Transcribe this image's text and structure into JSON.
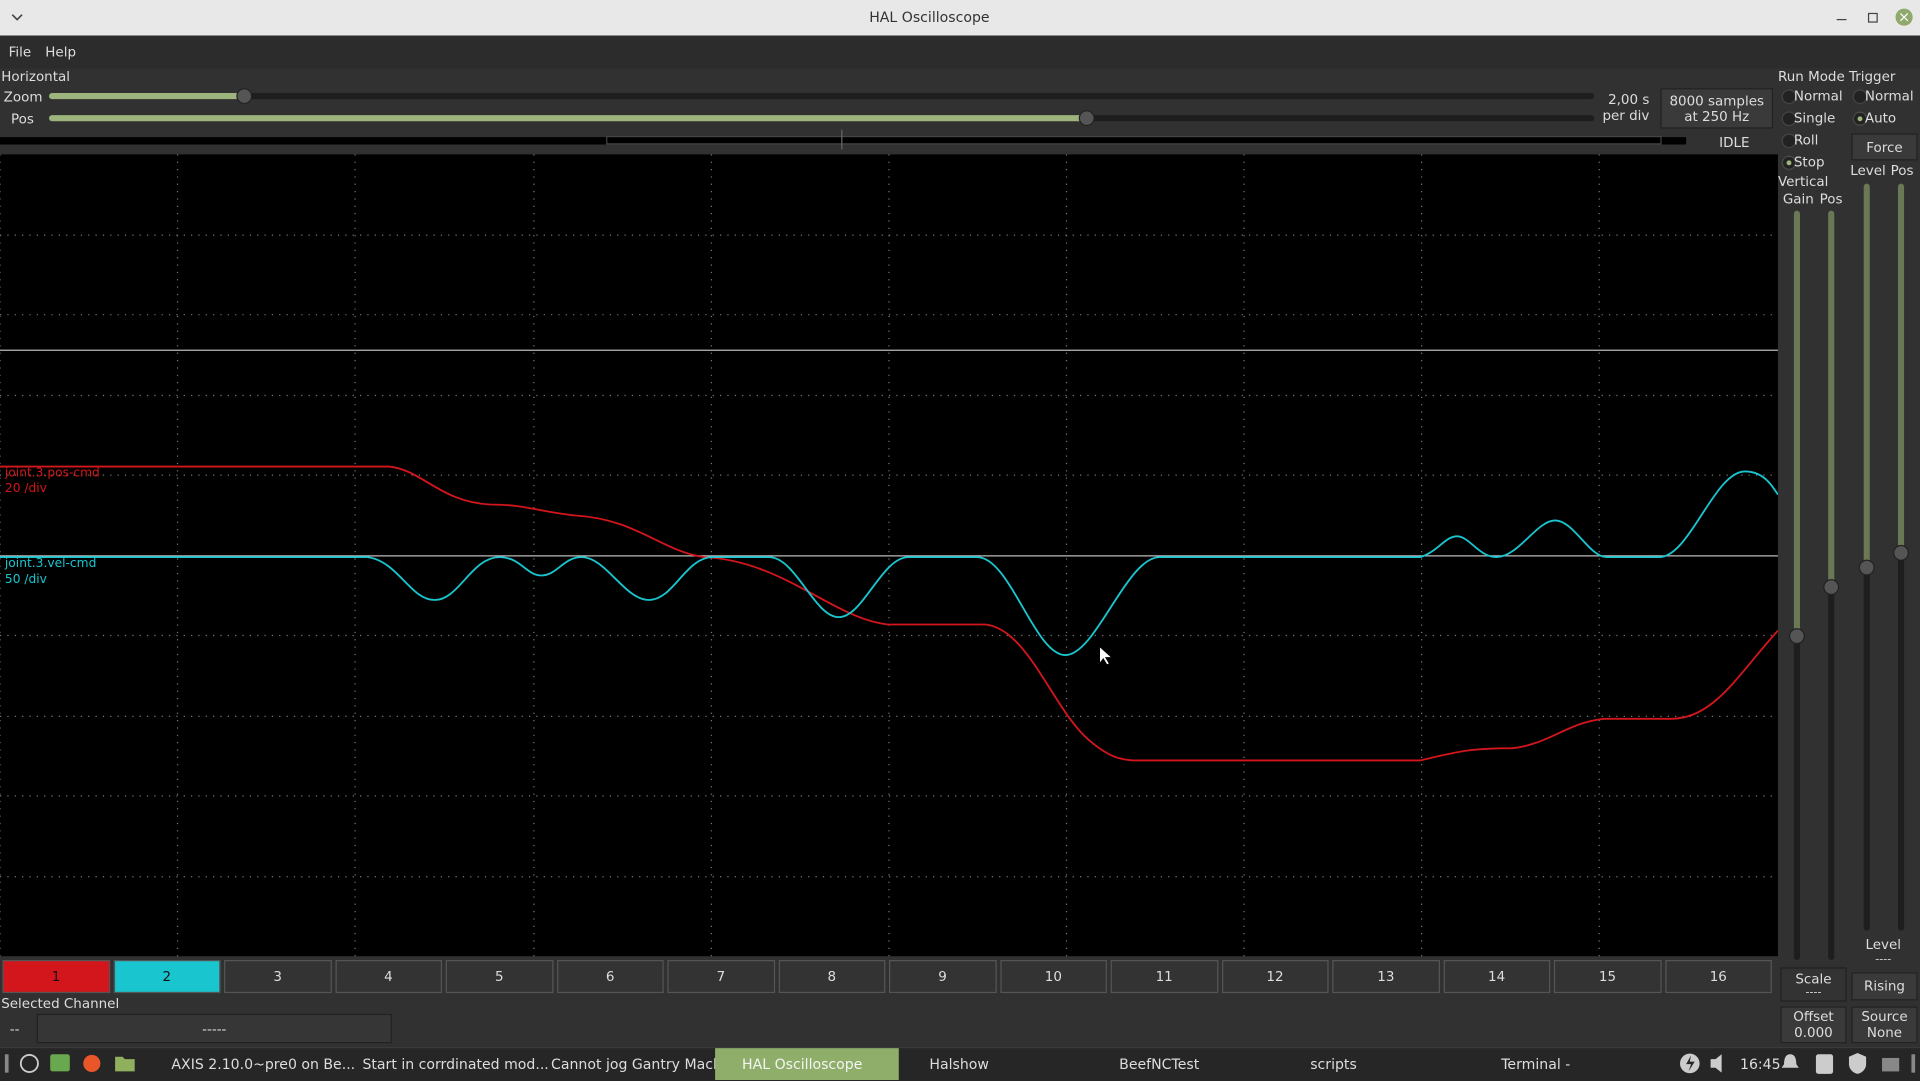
{
  "window": {
    "title": "HAL Oscilloscope"
  },
  "menu": [
    "File",
    "Help"
  ],
  "horizontal": {
    "label": "Horizontal",
    "zoom": "Zoom",
    "pos": "Pos",
    "timebase": "2,00 s",
    "timebase_unit": "per div",
    "samples": "8000 samples",
    "rate": "at 250 Hz",
    "status": "IDLE"
  },
  "run_mode": {
    "label": "Run Mode",
    "options": [
      "Normal",
      "Single",
      "Roll",
      "Stop"
    ],
    "selected": 3
  },
  "trigger": {
    "label": "Trigger",
    "options": [
      "Normal",
      "Auto"
    ],
    "selected": 1,
    "force": "Force",
    "level_label": "Level",
    "pos_label": "Pos",
    "level": "Level",
    "level_value": "----",
    "edge": "Rising",
    "source": "Source",
    "source_value": "None"
  },
  "vertical": {
    "label": "Vertical",
    "gain": "Gain",
    "pos": "Pos",
    "scale": "Scale",
    "scale_value": "----",
    "offset": "Offset",
    "offset_value": "0.000"
  },
  "traces": [
    {
      "name": "joint.3.pos-cmd",
      "scale": "20 /div",
      "color": "#d3161c"
    },
    {
      "name": "joint.3.vel-cmd",
      "scale": "50 /div",
      "color": "#19c6cf"
    }
  ],
  "channels": [
    "1",
    "2",
    "3",
    "4",
    "5",
    "6",
    "7",
    "8",
    "9",
    "10",
    "11",
    "12",
    "13",
    "14",
    "15",
    "16"
  ],
  "selected_channel": {
    "label": "Selected Channel",
    "number": "--",
    "name": "-----"
  },
  "taskbar": {
    "items": [
      "AXIS 2.10.0~pre0 on Be...",
      "Start in corrdinated mod...",
      "Cannot jog Gantry Machi...",
      "HAL Oscilloscope",
      "Halshow",
      "BeefNCTest",
      "scripts",
      "Terminal -"
    ],
    "active": 3,
    "clock": "16:45"
  }
}
